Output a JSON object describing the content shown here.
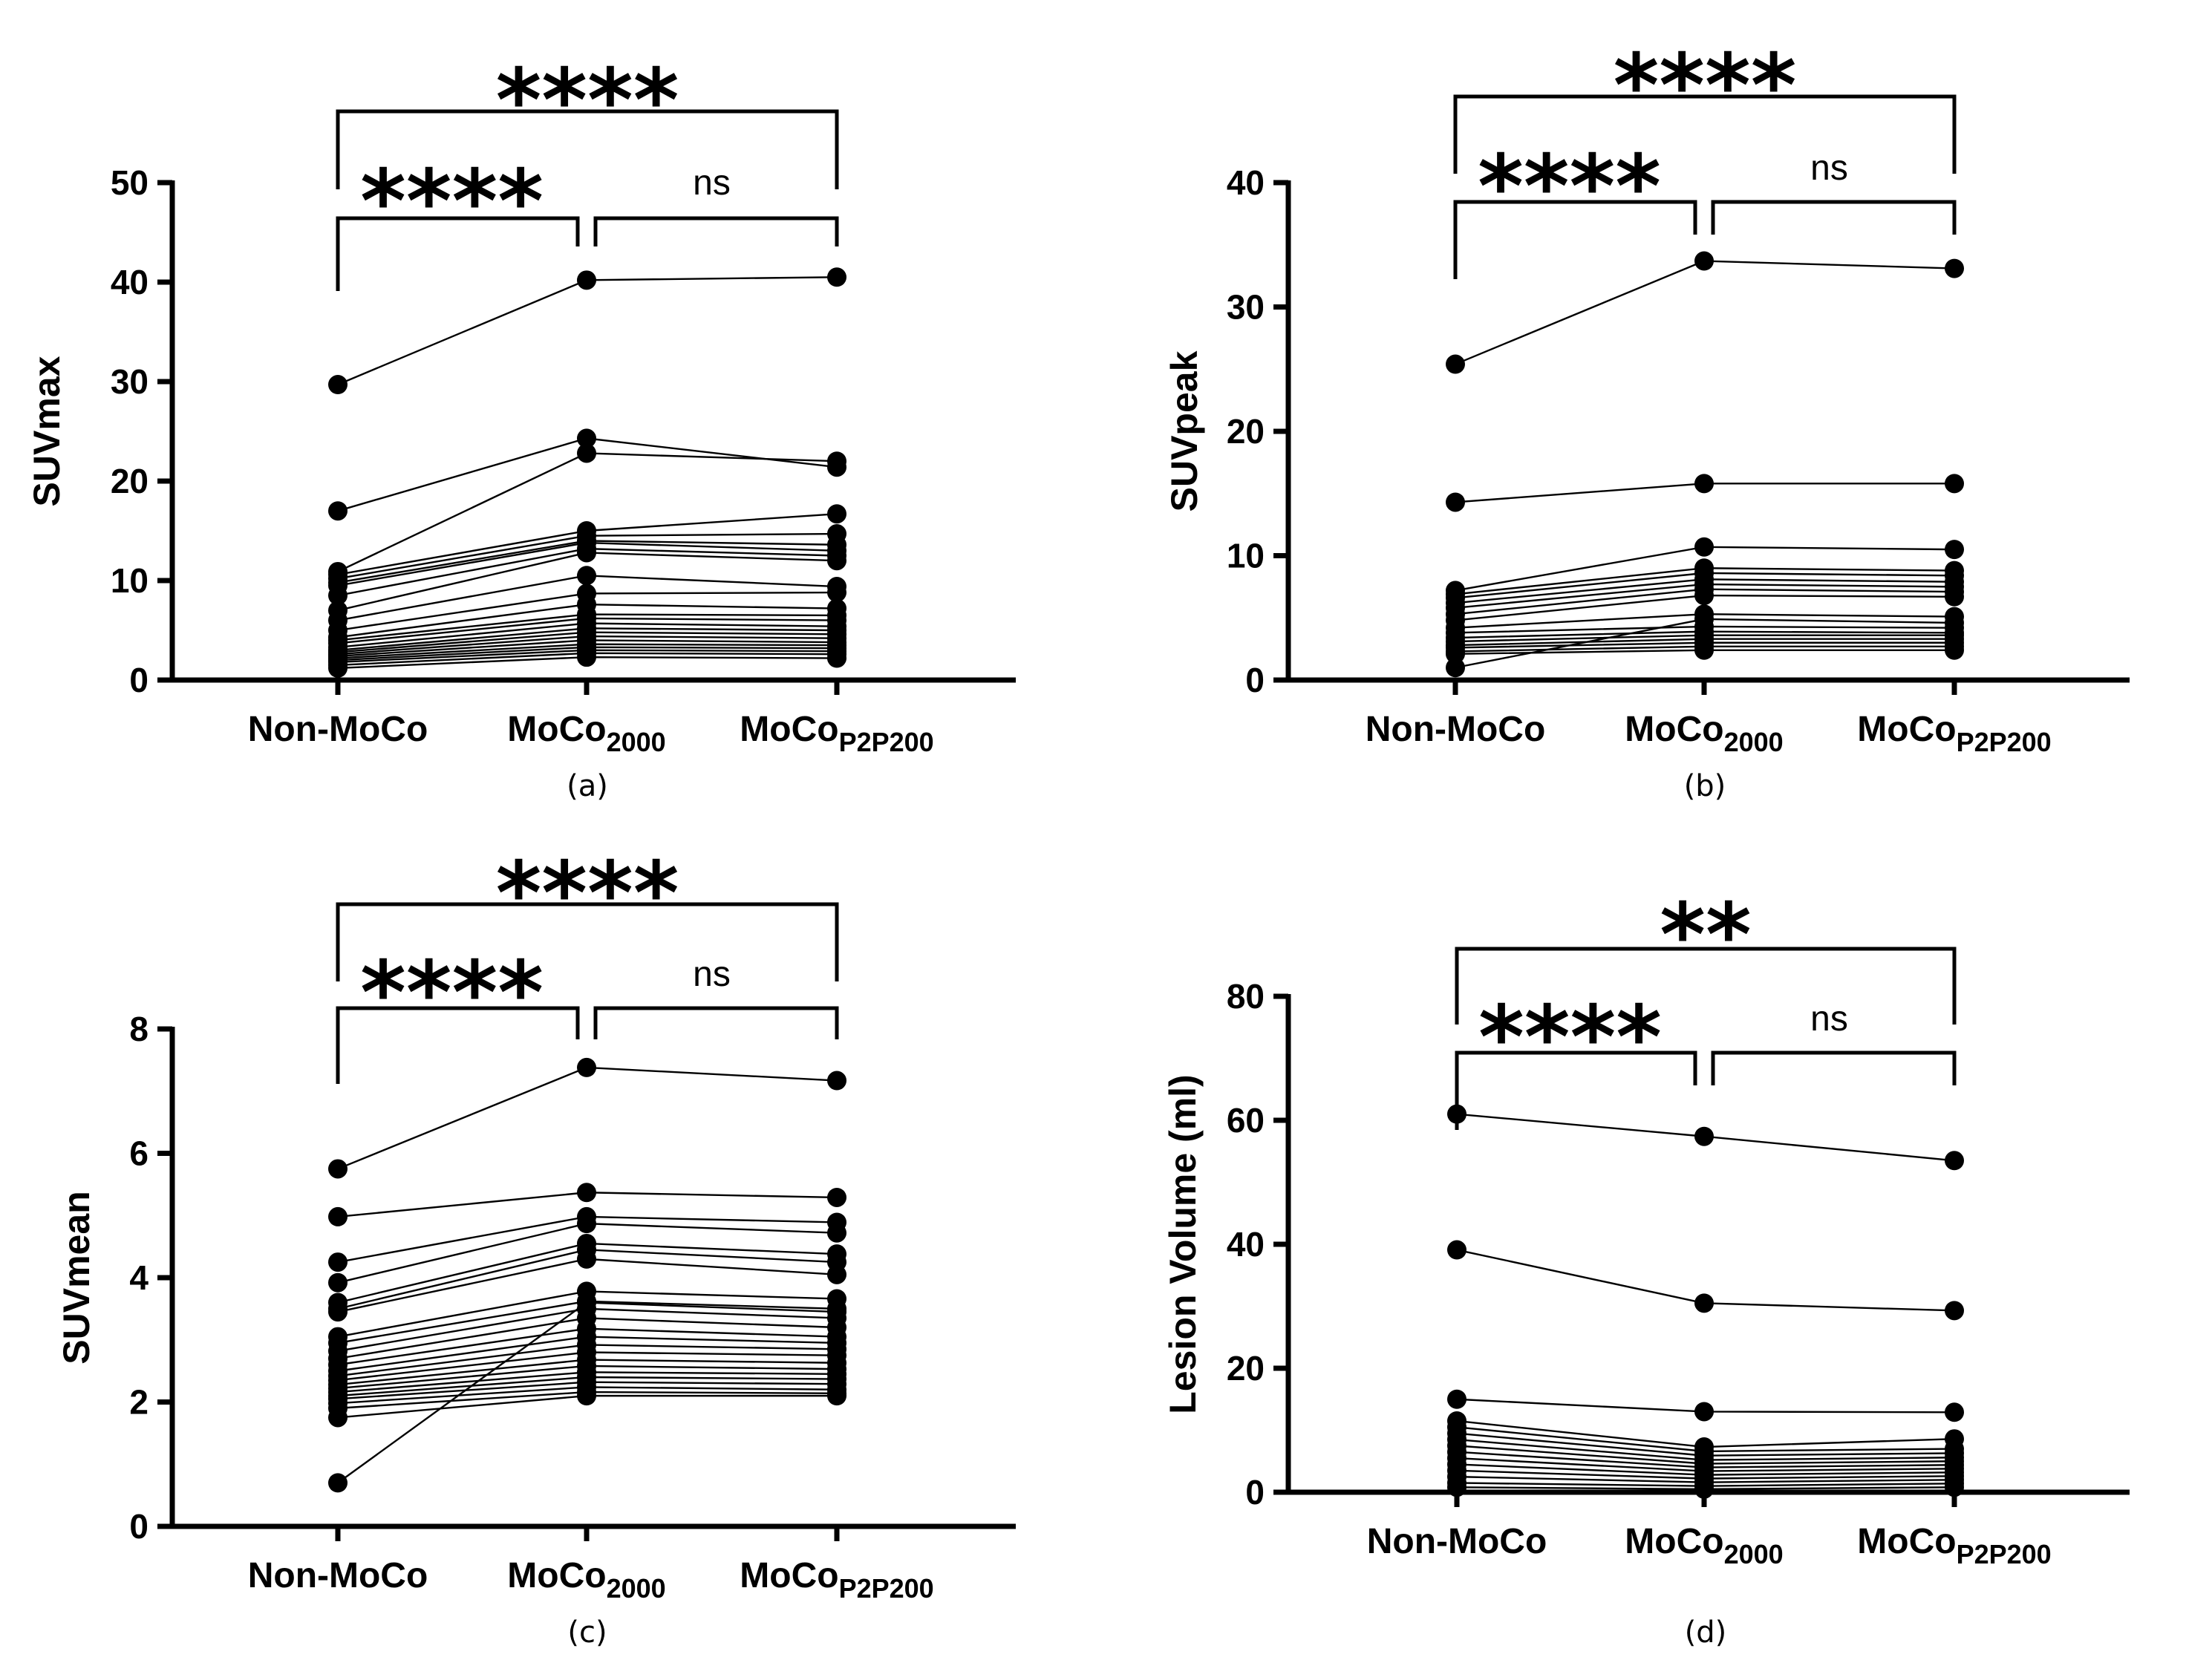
{
  "figure": {
    "categories": [
      {
        "main": "Non-MoCo",
        "sub": ""
      },
      {
        "main": "MoCo",
        "sub": "2000"
      },
      {
        "main": "MoCo",
        "sub": "P2P200"
      }
    ]
  },
  "chart_data": [
    {
      "type": "scatter",
      "id": "a",
      "caption": "(a)",
      "ylabel": "SUVmax",
      "ylim": [
        0,
        50
      ],
      "yticks": [
        0,
        10,
        20,
        30,
        40,
        50
      ],
      "significance": {
        "outer": "****",
        "left": "****",
        "right": "ns"
      },
      "series": [
        [
          29.7,
          40.2,
          40.5
        ],
        [
          17.0,
          24.3,
          21.4
        ],
        [
          10.9,
          22.8,
          22.0
        ],
        [
          10.6,
          15.0,
          16.7
        ],
        [
          10.2,
          14.5,
          14.7
        ],
        [
          9.8,
          14.0,
          13.6
        ],
        [
          9.5,
          13.8,
          13.0
        ],
        [
          8.5,
          13.2,
          12.5
        ],
        [
          7.0,
          12.8,
          12.0
        ],
        [
          6.0,
          10.5,
          9.4
        ],
        [
          5.0,
          8.7,
          8.8
        ],
        [
          4.3,
          7.6,
          7.2
        ],
        [
          4.0,
          6.6,
          6.5
        ],
        [
          3.7,
          6.2,
          6.0
        ],
        [
          3.3,
          5.7,
          5.4
        ],
        [
          3.0,
          5.2,
          5.0
        ],
        [
          2.8,
          4.8,
          4.6
        ],
        [
          2.6,
          4.4,
          4.2
        ],
        [
          2.4,
          4.0,
          3.8
        ],
        [
          2.2,
          3.6,
          3.5
        ],
        [
          2.0,
          3.3,
          3.2
        ],
        [
          1.8,
          3.0,
          2.9
        ],
        [
          1.5,
          2.7,
          2.6
        ],
        [
          1.2,
          2.3,
          2.2
        ]
      ]
    },
    {
      "type": "scatter",
      "id": "b",
      "caption": "(b)",
      "ylabel": "SUVpeak",
      "ylim": [
        0,
        40
      ],
      "yticks": [
        0,
        10,
        20,
        30,
        40
      ],
      "significance": {
        "outer": "****",
        "left": "****",
        "right": "ns"
      },
      "series": [
        [
          25.4,
          33.7,
          33.1
        ],
        [
          14.3,
          15.8,
          15.8
        ],
        [
          7.2,
          10.7,
          10.5
        ],
        [
          6.9,
          9.0,
          8.8
        ],
        [
          6.6,
          8.6,
          8.4
        ],
        [
          6.2,
          8.1,
          7.9
        ],
        [
          5.8,
          7.7,
          7.5
        ],
        [
          5.3,
          7.3,
          7.1
        ],
        [
          4.8,
          6.8,
          6.7
        ],
        [
          4.2,
          5.3,
          5.1
        ],
        [
          3.8,
          4.3,
          4.2
        ],
        [
          3.4,
          3.9,
          3.8
        ],
        [
          3.1,
          3.6,
          3.6
        ],
        [
          2.8,
          3.3,
          3.3
        ],
        [
          2.6,
          3.0,
          3.0
        ],
        [
          2.3,
          2.7,
          2.7
        ],
        [
          2.1,
          2.4,
          2.4
        ],
        [
          1.0,
          4.9,
          4.6
        ]
      ]
    },
    {
      "type": "scatter",
      "id": "c",
      "caption": "(c)",
      "ylabel": "SUVmean",
      "ylim": [
        0,
        8
      ],
      "yticks": [
        0,
        2,
        4,
        6,
        8
      ],
      "significance": {
        "outer": "****",
        "left": "****",
        "right": "ns"
      },
      "series": [
        [
          5.75,
          7.38,
          7.17
        ],
        [
          4.98,
          5.37,
          5.29
        ],
        [
          4.25,
          4.98,
          4.89
        ],
        [
          3.92,
          4.87,
          4.72
        ],
        [
          3.6,
          4.55,
          4.38
        ],
        [
          3.5,
          4.45,
          4.25
        ],
        [
          3.45,
          4.3,
          4.05
        ],
        [
          3.05,
          3.78,
          3.66
        ],
        [
          2.95,
          3.62,
          3.5
        ],
        [
          2.82,
          3.5,
          3.35
        ],
        [
          2.7,
          3.35,
          3.2
        ],
        [
          2.6,
          3.18,
          3.05
        ],
        [
          2.5,
          3.05,
          2.95
        ],
        [
          2.42,
          2.92,
          2.85
        ],
        [
          2.35,
          2.8,
          2.75
        ],
        [
          2.28,
          2.68,
          2.63
        ],
        [
          2.22,
          2.58,
          2.53
        ],
        [
          2.16,
          2.48,
          2.45
        ],
        [
          2.1,
          2.4,
          2.37
        ],
        [
          2.05,
          2.32,
          2.29
        ],
        [
          1.98,
          2.24,
          2.2
        ],
        [
          1.9,
          2.16,
          2.14
        ],
        [
          1.75,
          2.1,
          2.1
        ],
        [
          0.7,
          3.6,
          3.45
        ]
      ]
    },
    {
      "type": "scatter",
      "id": "d",
      "caption": "(d)",
      "ylabel": "Lesion Volume  (ml)",
      "ylim": [
        0,
        80
      ],
      "yticks": [
        0,
        20,
        40,
        60,
        80
      ],
      "significance": {
        "outer": "**",
        "left": "****",
        "right": "ns"
      },
      "series": [
        [
          61.0,
          57.4,
          53.5
        ],
        [
          39.1,
          30.5,
          29.3
        ],
        [
          15.0,
          13.0,
          12.9
        ],
        [
          11.5,
          7.3,
          8.6
        ],
        [
          10.5,
          6.6,
          7.0
        ],
        [
          9.5,
          5.9,
          6.3
        ],
        [
          8.5,
          5.2,
          5.6
        ],
        [
          7.5,
          4.6,
          5.0
        ],
        [
          6.5,
          4.0,
          4.4
        ],
        [
          5.5,
          3.4,
          3.8
        ],
        [
          4.5,
          2.8,
          3.2
        ],
        [
          3.5,
          2.2,
          2.6
        ],
        [
          2.5,
          1.6,
          2.0
        ],
        [
          1.5,
          1.0,
          1.4
        ],
        [
          0.8,
          0.5,
          0.8
        ]
      ]
    }
  ]
}
